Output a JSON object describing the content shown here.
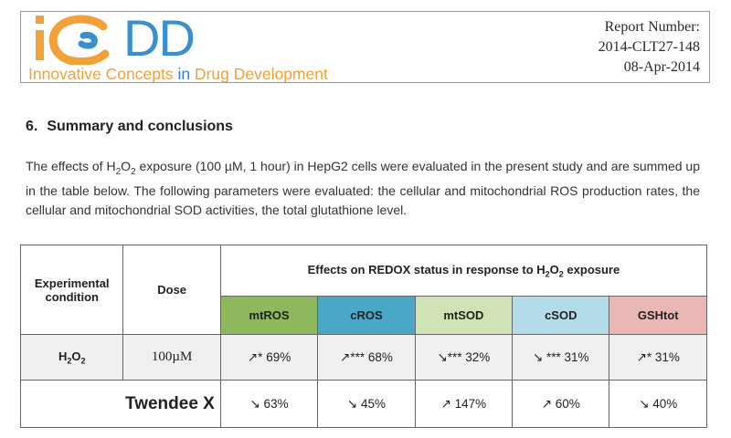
{
  "header": {
    "logo_letters": "DD",
    "tagline_part1": "Innovative Concepts ",
    "tagline_part2": "in",
    "tagline_part3": " Drug Development",
    "report_label": "Report Number:",
    "report_number": "2014-CLT27-148",
    "report_date": "08-Apr-2014"
  },
  "section": {
    "number": "6.",
    "title": "Summary and conclusions"
  },
  "paragraph": {
    "part1": "The effects of H",
    "sub1": "2",
    "part2": "O",
    "sub2": "2",
    "part3": " exposure (100 µM, 1 hour) in HepG2 cells were evaluated in the present study and are summed up in the table below. The following parameters were evaluated: the cellular and mitochondrial ROS production rates, the cellular and mitochondrial SOD activities, the total glutathione level."
  },
  "table": {
    "col_experimental": "Experimental condition",
    "col_dose": "Dose",
    "effects_title_part1": "Effects on REDOX status in response to H",
    "effects_sub1": "2",
    "effects_title_part2": "O",
    "effects_sub2": "2",
    "effects_title_part3": " exposure",
    "params": [
      "mtROS",
      "cROS",
      "mtSOD",
      "cSOD",
      "GSHtot"
    ],
    "param_colors": [
      "#8db85c",
      "#4aa8c6",
      "#cfe3b5",
      "#b4dbe9",
      "#eab7b7"
    ],
    "rows": [
      {
        "condition_main": "H",
        "condition_sub1": "2",
        "condition_mid": "O",
        "condition_sub2": "2",
        "dose": "100µM",
        "values": [
          "↗* 69%",
          "↗*** 68%",
          "↘*** 32%",
          "↘ *** 31%",
          "↗* 31%"
        ]
      },
      {
        "condition": "Twendee X",
        "dose": "",
        "values": [
          "↘ 63%",
          "↘ 45%",
          "↗ 147%",
          "↗ 60%",
          "↘ 40%"
        ]
      }
    ]
  }
}
